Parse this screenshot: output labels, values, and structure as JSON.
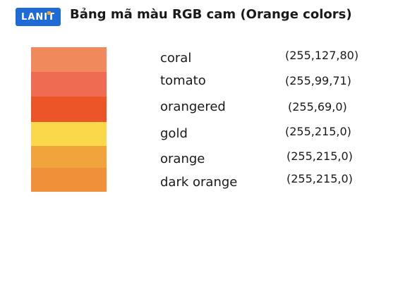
{
  "logo": {
    "text": "LANIT",
    "brand_color": "#1f6bd6",
    "accent_color": "#f2a33a"
  },
  "title": "Bảng mã màu RGB cam (Orange colors)",
  "colors": [
    {
      "name": "coral",
      "value": "(255,127,80)",
      "swatch": "#f0895c"
    },
    {
      "name": "tomato",
      "value": "(255,99,71)",
      "swatch": "#ef6b52"
    },
    {
      "name": "orangered",
      "value": "(255,69,0)",
      "swatch": "#ec5528"
    },
    {
      "name": "gold",
      "value": "(255,215,0)",
      "swatch": "#fbd84a"
    },
    {
      "name": "orange",
      "value": "(255,215,0)",
      "swatch": "#f2a43c"
    },
    {
      "name": "dark orange",
      "value": "(255,215,0)",
      "swatch": "#f0913a"
    }
  ]
}
